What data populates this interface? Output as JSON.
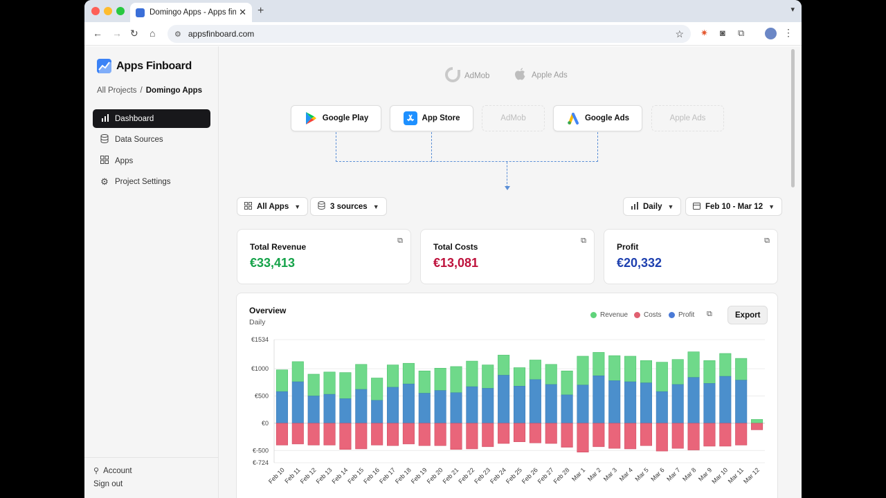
{
  "browser": {
    "tab_title": "Domingo Apps - Apps finboard",
    "tab_close": "✕",
    "new_tab": "+",
    "url": "appsfinboard.com"
  },
  "sidebar": {
    "brand": "Apps Finboard",
    "breadcrumb": {
      "parent": "All Projects",
      "separator": "/",
      "current": "Domingo Apps"
    },
    "items": [
      {
        "label": "Dashboard",
        "icon": "chart-bars-icon",
        "active": true
      },
      {
        "label": "Data Sources",
        "icon": "database-icon",
        "active": false
      },
      {
        "label": "Apps",
        "icon": "grid-icon",
        "active": false
      },
      {
        "label": "Project Settings",
        "icon": "gear-icon",
        "active": false
      }
    ],
    "footer": {
      "account": "Account",
      "signout": "Sign out"
    }
  },
  "sources": {
    "floating": [
      {
        "label": "AdMob",
        "icon": "admob-icon"
      },
      {
        "label": "Apple Ads",
        "icon": "apple-icon"
      }
    ],
    "connected": [
      {
        "label": "Google Play",
        "state": "connected",
        "icon": "google-play-icon"
      },
      {
        "label": "App Store",
        "state": "connected",
        "icon": "app-store-icon"
      },
      {
        "label": "AdMob",
        "state": "placeholder"
      },
      {
        "label": "Google Ads",
        "state": "connected",
        "icon": "google-ads-icon"
      },
      {
        "label": "Apple Ads",
        "state": "placeholder"
      }
    ]
  },
  "filters": {
    "apps": "All Apps",
    "sources": "3 sources",
    "granularity": "Daily",
    "date_range": "Feb 10 - Mar 12"
  },
  "kpis": [
    {
      "label": "Total Revenue",
      "value": "€33,413",
      "color": "#16a34a"
    },
    {
      "label": "Total Costs",
      "value": "€13,081",
      "color": "#be123c"
    },
    {
      "label": "Profit",
      "value": "€20,332",
      "color": "#1e40af"
    }
  ],
  "overview": {
    "title": "Overview",
    "subtitle": "Daily",
    "export_label": "Export",
    "legend": [
      {
        "label": "Revenue",
        "color": "#5fd37a"
      },
      {
        "label": "Costs",
        "color": "#e06070"
      },
      {
        "label": "Profit",
        "color": "#4a7ad6"
      }
    ]
  },
  "chart_data": {
    "type": "bar",
    "title": "Overview",
    "subtitle": "Daily",
    "y_ticks": [
      "€1534",
      "€1000",
      "€500",
      "€0",
      "€-500",
      "€-724"
    ],
    "y_tick_values": [
      1534,
      1000,
      500,
      0,
      -500,
      -724
    ],
    "ylim": [
      -724,
      1534
    ],
    "categories": [
      "Feb 10",
      "Feb 11",
      "Feb 12",
      "Feb 13",
      "Feb 14",
      "Feb 15",
      "Feb 16",
      "Feb 17",
      "Feb 18",
      "Feb 19",
      "Feb 20",
      "Feb 21",
      "Feb 22",
      "Feb 23",
      "Feb 24",
      "Feb 25",
      "Feb 26",
      "Feb 27",
      "Feb 28",
      "Mar 1",
      "Mar 2",
      "Mar 3",
      "Mar 4",
      "Mar 5",
      "Mar 6",
      "Mar 7",
      "Mar 8",
      "Mar 9",
      "Mar 10",
      "Mar 11",
      "Mar 12"
    ],
    "series": [
      {
        "name": "Revenue",
        "color": "#6fd98a",
        "values": [
          980,
          1130,
          900,
          940,
          930,
          1080,
          830,
          1070,
          1100,
          960,
          1010,
          1040,
          1140,
          1070,
          1250,
          1020,
          1160,
          1080,
          960,
          1230,
          1300,
          1240,
          1230,
          1150,
          1120,
          1170,
          1310,
          1150,
          1280,
          1190,
          70
        ]
      },
      {
        "name": "Profit",
        "color": "#4b8fcc",
        "values": [
          580,
          760,
          500,
          530,
          450,
          620,
          420,
          660,
          720,
          550,
          600,
          560,
          670,
          640,
          880,
          680,
          800,
          710,
          520,
          700,
          870,
          780,
          760,
          740,
          580,
          710,
          840,
          730,
          860,
          790,
          -20
        ]
      },
      {
        "name": "Costs",
        "color": "#e9657a",
        "values": [
          -400,
          -380,
          -400,
          -400,
          -480,
          -470,
          -400,
          -410,
          -380,
          -410,
          -410,
          -480,
          -470,
          -430,
          -370,
          -340,
          -360,
          -370,
          -440,
          -530,
          -430,
          -460,
          -470,
          -410,
          -510,
          -460,
          -490,
          -420,
          -420,
          -400,
          -120
        ]
      }
    ]
  }
}
